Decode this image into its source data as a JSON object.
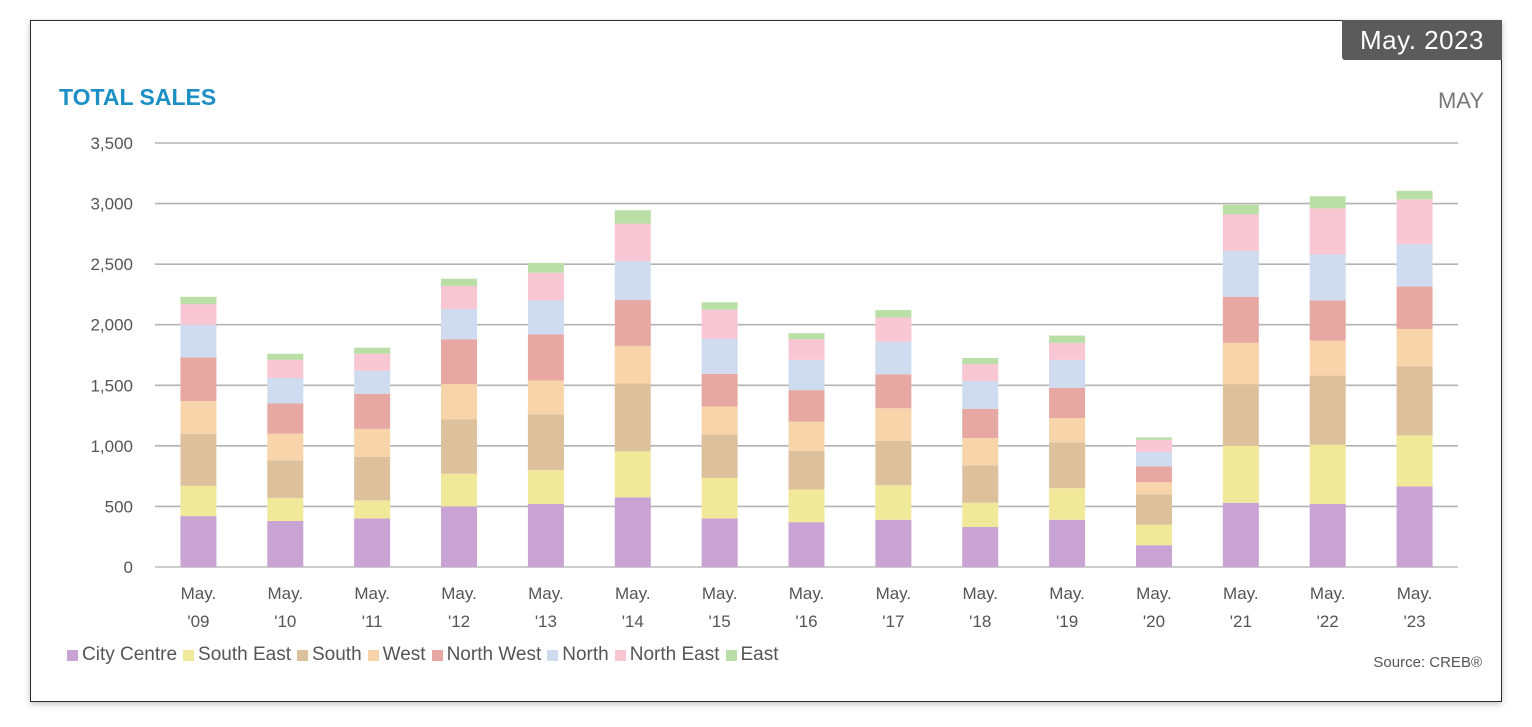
{
  "badge": "May. 2023",
  "title": "TOTAL SALES",
  "period_label": "MAY",
  "source": "Source: CREB®",
  "chart_data": {
    "type": "bar",
    "stacked": true,
    "title": "TOTAL SALES",
    "xlabel": "",
    "ylabel": "",
    "ylim": [
      0,
      3500
    ],
    "yticks": [
      0,
      500,
      1000,
      1500,
      2000,
      2500,
      3000,
      3500
    ],
    "ytick_labels": [
      "0",
      "500",
      "1,000",
      "1,500",
      "2,000",
      "2,500",
      "3,000",
      "3,500"
    ],
    "grid": true,
    "legend_position": "bottom-left",
    "categories": [
      [
        "May.",
        "'09"
      ],
      [
        "May.",
        "'10"
      ],
      [
        "May.",
        "'11"
      ],
      [
        "May.",
        "'12"
      ],
      [
        "May.",
        "'13"
      ],
      [
        "May.",
        "'14"
      ],
      [
        "May.",
        "'15"
      ],
      [
        "May.",
        "'16"
      ],
      [
        "May.",
        "'17"
      ],
      [
        "May.",
        "'18"
      ],
      [
        "May.",
        "'19"
      ],
      [
        "May.",
        "'20"
      ],
      [
        "May.",
        "'21"
      ],
      [
        "May.",
        "'22"
      ],
      [
        "May.",
        "'23"
      ]
    ],
    "series": [
      {
        "name": "City Centre",
        "color": "#c9a3d3",
        "values": [
          420,
          380,
          400,
          500,
          520,
          575,
          400,
          370,
          390,
          330,
          390,
          180,
          530,
          520,
          665
        ]
      },
      {
        "name": "South East",
        "color": "#f1e99a",
        "values": [
          250,
          190,
          150,
          270,
          280,
          380,
          335,
          270,
          285,
          200,
          260,
          170,
          470,
          490,
          420
        ]
      },
      {
        "name": "South",
        "color": "#dcc19c",
        "values": [
          430,
          310,
          360,
          450,
          460,
          560,
          360,
          320,
          365,
          310,
          380,
          250,
          510,
          570,
          570
        ]
      },
      {
        "name": "West",
        "color": "#f7d4aa",
        "values": [
          270,
          220,
          230,
          290,
          280,
          310,
          230,
          240,
          270,
          225,
          200,
          100,
          340,
          290,
          310
        ]
      },
      {
        "name": "North West",
        "color": "#e7a8a3",
        "values": [
          360,
          250,
          290,
          370,
          380,
          380,
          270,
          260,
          280,
          240,
          250,
          130,
          380,
          330,
          350
        ]
      },
      {
        "name": "North",
        "color": "#cfdcef",
        "values": [
          270,
          210,
          190,
          250,
          280,
          320,
          290,
          250,
          270,
          230,
          230,
          120,
          380,
          380,
          350
        ]
      },
      {
        "name": "North East",
        "color": "#f8c7d3",
        "values": [
          170,
          150,
          140,
          190,
          230,
          310,
          240,
          170,
          200,
          140,
          140,
          100,
          300,
          380,
          370
        ]
      },
      {
        "name": "East",
        "color": "#b9dea6",
        "values": [
          60,
          50,
          50,
          60,
          80,
          110,
          60,
          50,
          60,
          50,
          60,
          20,
          80,
          100,
          70
        ]
      }
    ]
  }
}
